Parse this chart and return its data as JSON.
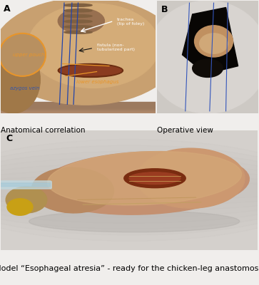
{
  "fig_width": 3.63,
  "fig_height": 4.0,
  "dpi": 100,
  "background_color": "#f0eeec",
  "panel_A": {
    "bg_top": "#b89070",
    "bg_mid": "#c8a070",
    "bg_left": "#a07850",
    "tissue_main": "#c09868",
    "tissue_light": "#d4b080",
    "tissue_dark": "#906040",
    "pouch_color": "#c0906050",
    "pouch_outline": "#e8952a",
    "dark_structure": "#6a3018",
    "blue_line": "#3355aa",
    "orange_label": "#e8952a",
    "white_label": "#ffffff",
    "black_label": "#111111",
    "label": "A",
    "caption": "Anatomical correlation"
  },
  "panel_B": {
    "bg": "#c8c4be",
    "bg2": "#d0ccc8",
    "drape_bg": "#d5d0cc",
    "cavity_dark": "#0a0806",
    "inner_tissue": "#b07848",
    "blue_line": "#3355bb",
    "label": "B",
    "caption": "Operative view"
  },
  "panel_C": {
    "bg": "#d8d4d0",
    "leg_main": "#c49070",
    "leg_skin": "#d4a880",
    "leg_drum": "#c09068",
    "leg_dark": "#a07050",
    "foot_yellow": "#c8a018",
    "incision": "#883020",
    "tube_color": "#c8d8e0",
    "label": "C",
    "caption": "Model “Esophageal atresia” - ready for the chicken-leg anastomosis"
  },
  "title_fontsize": 7.5,
  "label_fontsize": 9.5,
  "caption_fontsize": 8.0
}
